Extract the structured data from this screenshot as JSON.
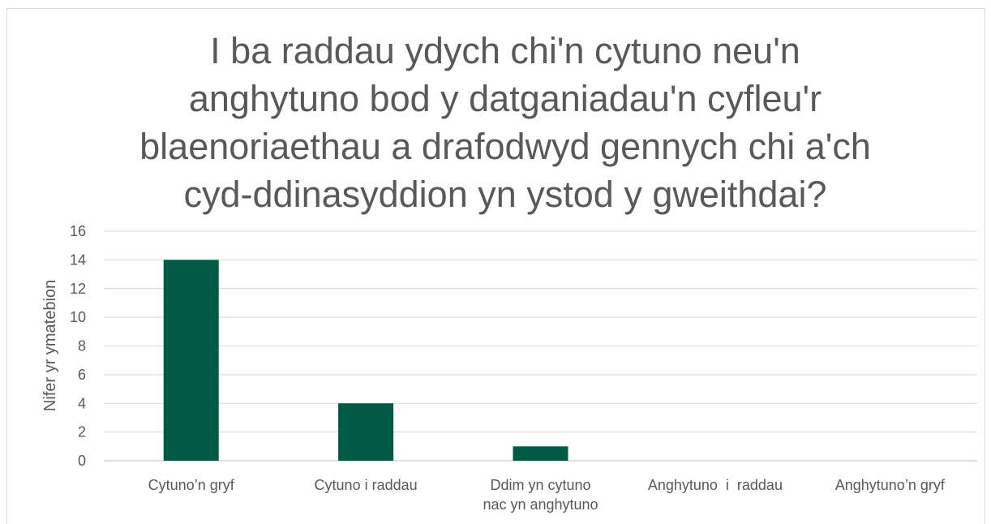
{
  "chart_data": {
    "type": "bar",
    "title": [
      "I ba raddau ydych chi'n cytuno neu'n",
      "anghytuno bod y datganiadau'n cyfleu'r",
      "blaenoriaethau a drafodwyd gennych chi a'ch",
      "cyd-ddinasyddion yn ystod y gweithdai?"
    ],
    "y_label": "Nifer yr ymatebion",
    "categories": [
      "Cytuno’n gryf",
      "Cytuno i raddau",
      "Ddim yn cytuno nac yn anghytuno",
      "Anghytuno  i  raddau",
      "Anghytuno’n gryf"
    ],
    "values": [
      14,
      4,
      1,
      0,
      0
    ],
    "color": "#005a45",
    "ylim": [
      0,
      16
    ],
    "yticks": [
      0,
      2,
      4,
      6,
      8,
      10,
      12,
      14,
      16
    ],
    "grid": true
  }
}
